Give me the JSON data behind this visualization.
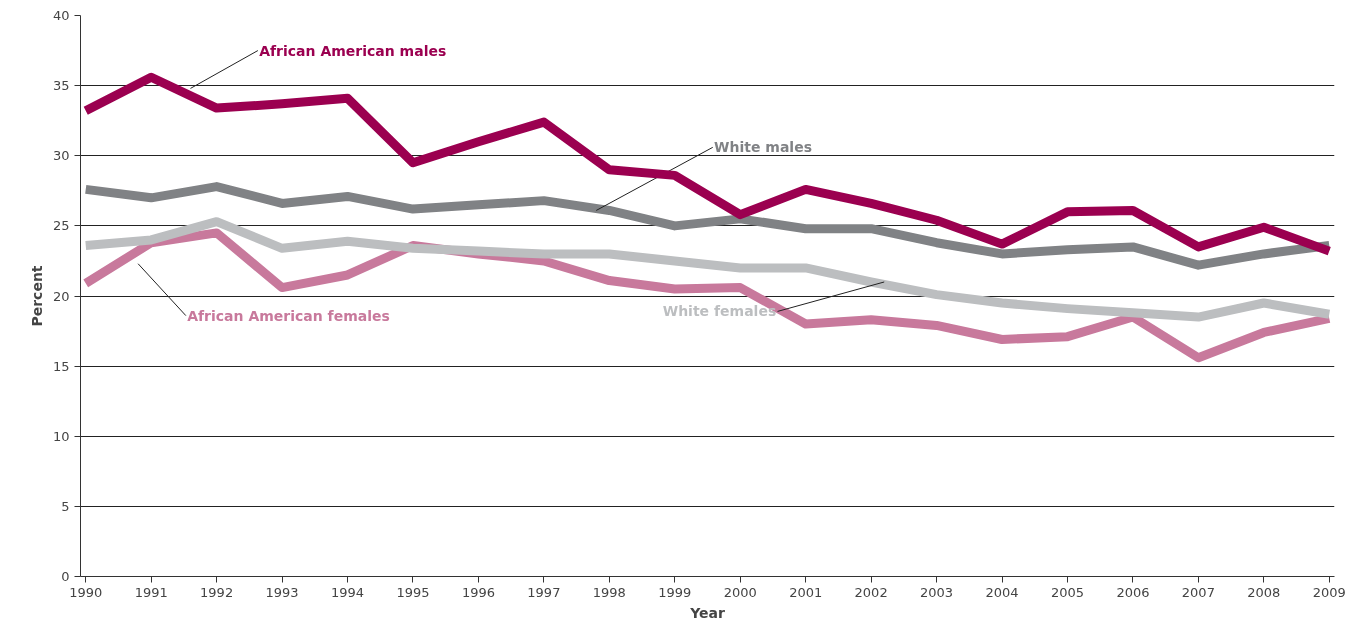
{
  "chart_data": {
    "type": "line",
    "xlabel": "Year",
    "ylabel": "Percent",
    "x": [
      1990,
      1991,
      1992,
      1993,
      1994,
      1995,
      1996,
      1997,
      1998,
      1999,
      2000,
      2001,
      2002,
      2003,
      2004,
      2005,
      2006,
      2007,
      2008,
      2009
    ],
    "xlim": [
      1989.92,
      2009.08
    ],
    "xticks": [
      1990,
      1991,
      1992,
      1993,
      1994,
      1995,
      1996,
      1997,
      1998,
      1999,
      2000,
      2001,
      2002,
      2003,
      2004,
      2005,
      2006,
      2007,
      2008,
      2009
    ],
    "ylim": [
      0,
      40
    ],
    "yticks": [
      0,
      5,
      10,
      15,
      20,
      25,
      30,
      35,
      40
    ],
    "grid": "y",
    "marker": "none",
    "line_style": "solid",
    "series": [
      {
        "name": "African American females",
        "color": "#c8799c",
        "values": [
          20.9,
          23.8,
          24.5,
          20.6,
          21.5,
          23.6,
          23.0,
          22.5,
          21.1,
          20.5,
          20.6,
          18.0,
          18.3,
          17.9,
          16.9,
          17.1,
          18.5,
          15.6,
          17.4,
          18.4
        ]
      },
      {
        "name": "White females",
        "color": "#bcbec0",
        "values": [
          23.6,
          24.0,
          25.3,
          23.4,
          23.9,
          23.4,
          23.2,
          23.0,
          23.0,
          22.5,
          22.0,
          22.0,
          21.0,
          20.1,
          19.5,
          19.1,
          18.8,
          18.5,
          19.5,
          18.7
        ]
      },
      {
        "name": "White males",
        "color": "#808285",
        "values": [
          27.6,
          27.0,
          27.8,
          26.6,
          27.1,
          26.2,
          26.5,
          26.8,
          26.1,
          25.0,
          25.5,
          24.8,
          24.8,
          23.8,
          23.0,
          23.3,
          23.5,
          22.2,
          23.0,
          23.6
        ]
      },
      {
        "name": "African American males",
        "color": "#9b0050",
        "values": [
          33.2,
          35.6,
          33.4,
          33.7,
          34.1,
          29.5,
          31.0,
          32.4,
          29.0,
          28.6,
          25.8,
          27.6,
          26.6,
          25.4,
          23.7,
          26.0,
          26.1,
          23.5,
          24.9,
          23.2
        ]
      }
    ]
  }
}
